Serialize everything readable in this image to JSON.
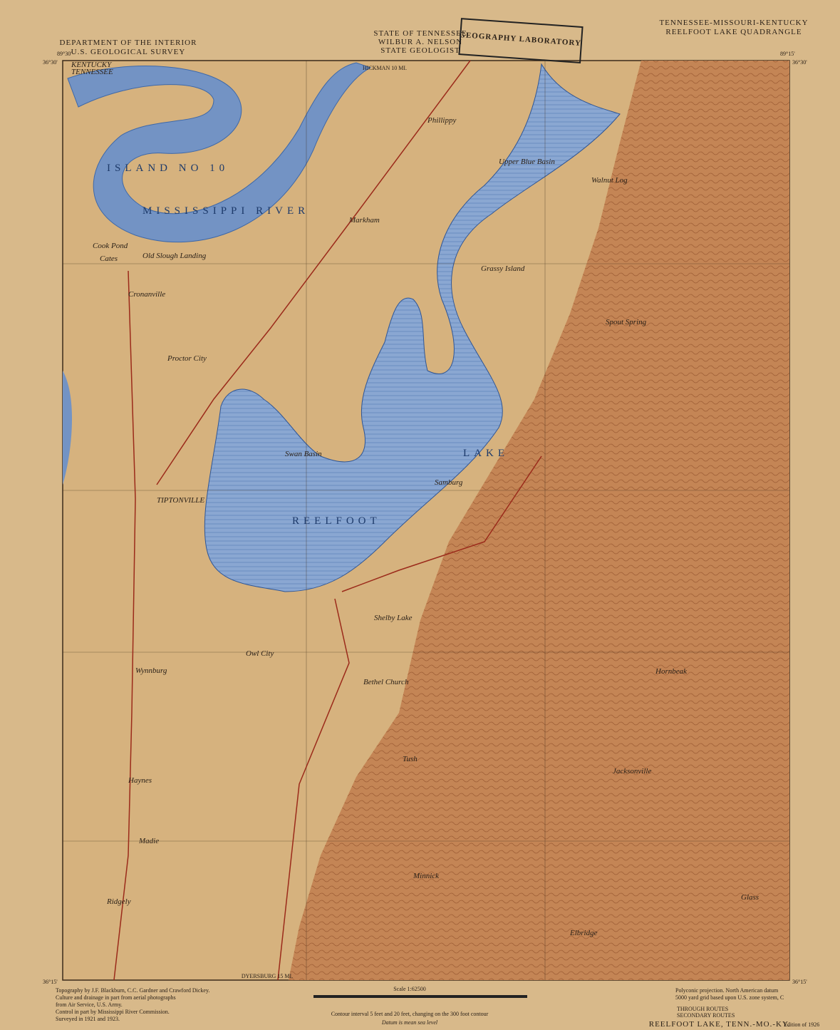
{
  "header": {
    "left_1": "DEPARTMENT OF THE INTERIOR",
    "left_2": "U.S. GEOLOGICAL SURVEY",
    "center_1": "STATE OF TENNESSEE",
    "center_2": "WILBUR A. NELSON",
    "center_3": "STATE GEOLOGIST",
    "right_1": "TENNESSEE-MISSOURI-KENTUCKY",
    "right_2": "REELFOOT LAKE QUADRANGLE",
    "stamp": "GEOGRAPHY LABORATORY"
  },
  "corners": {
    "top_left_lat": "36°30'",
    "top_left_lon": "89°30'",
    "top_right_lat": "36°30'",
    "top_right_lon": "89°15'",
    "bottom_left_lat": "36°15'",
    "bottom_right_lat": "36°15'"
  },
  "routes": {
    "north": "HICKMAN 10 MI.",
    "south": "DYERSBURG 15 MI."
  },
  "places": [
    "ISLAND NO 10",
    "MISSISSIPPI RIVER",
    "Phillippy",
    "Markham",
    "Cronanville",
    "Proctor City",
    "TIPTONVILLE",
    "Samburg",
    "Walnut Log",
    "Spout Spring",
    "REELFOOT",
    "LAKE",
    "Upper Blue Basin",
    "Grassy Island",
    "Swan Basin",
    "Hornbeak",
    "Wynnburg",
    "Owl City",
    "Bethel Church",
    "Tush",
    "Jacksonville",
    "Ridgely",
    "Minnick",
    "Elbridge",
    "Madie",
    "Haynes",
    "Cook Pond",
    "Cates",
    "Old Slough Landing",
    "Shelby Lake",
    "Glass",
    "KENTUCKY",
    "TENNESSEE"
  ],
  "footer": {
    "credits": [
      "Topography by J.F. Blackburn, C.C. Gardner and Crawford Dickey.",
      "Culture and drainage in part from aerial photographs",
      "from Air Service, U.S. Army.",
      "Control in part by Mississippi River Commission.",
      "Surveyed in 1921 and 1923."
    ],
    "scale": "Scale 1:62500",
    "contour": "Contour interval 5 feet and 20 feet, changing on the 300 foot contour",
    "datum": "Datum is mean sea level",
    "projection": [
      "Polyconic projection. North American datum",
      "5000 yard grid based upon U.S. zone system, C"
    ],
    "legend": [
      "THROUGH ROUTES",
      "SECONDARY ROUTES"
    ],
    "name": "REELFOOT LAKE, TENN.-MO.-KY.",
    "edition": "Edition of 1926"
  }
}
